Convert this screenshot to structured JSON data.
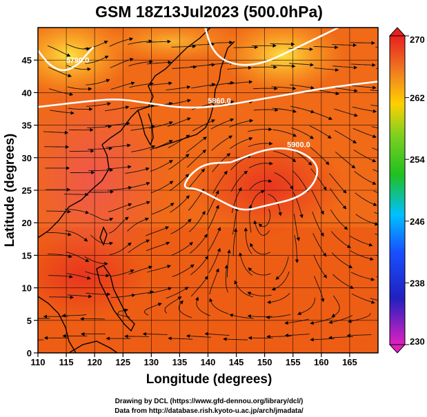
{
  "title": "GSM 18Z13Jul2023 (500.0hPa)",
  "credits": [
    "Drawing by DCL (https://www.gfd-dennou.org/library/dcl/)",
    "Data from http://database.rish.kyoto-u.ac.jp/arch/jmadata/"
  ],
  "chart_data": {
    "type": "heatmap",
    "title": "GSM 18Z13Jul2023 (500.0hPa)",
    "xlabel": "Longitude (degrees)",
    "ylabel": "Latitude  (degrees)",
    "xlim": [
      110,
      170
    ],
    "ylim": [
      0,
      50
    ],
    "x_ticks": [
      110,
      115,
      120,
      125,
      130,
      135,
      140,
      145,
      150,
      155,
      160,
      165
    ],
    "y_ticks": [
      0,
      5,
      10,
      15,
      20,
      25,
      30,
      35,
      40,
      45
    ],
    "grid": true,
    "colorbar": {
      "min": 230,
      "max": 270,
      "ticks": [
        230,
        238,
        246,
        254,
        262,
        270
      ],
      "colors": [
        "#e020c0",
        "#2020c0",
        "#00c0ff",
        "#20c020",
        "#ffd000",
        "#e82020"
      ]
    },
    "contours": [
      {
        "label": "5790.0",
        "points": [
          [
            110,
            46.5
          ],
          [
            112,
            44.2
          ],
          [
            114.5,
            43.2
          ],
          [
            117,
            44.2
          ],
          [
            118.5,
            45.8
          ],
          [
            119.8,
            47
          ]
        ]
      },
      {
        "label": "5860.0",
        "points": [
          [
            110,
            37.8
          ],
          [
            118,
            38.6
          ],
          [
            124,
            39.1
          ],
          [
            130,
            38.3
          ],
          [
            136,
            37.6
          ],
          [
            142,
            37.9
          ],
          [
            148,
            38.8
          ],
          [
            154,
            39.7
          ],
          [
            160,
            40.6
          ],
          [
            166,
            41.3
          ],
          [
            170,
            41.7
          ]
        ]
      },
      {
        "label": "5900.0",
        "points": [
          [
            144,
            29.3
          ],
          [
            151,
            31.6
          ],
          [
            156,
            31.2
          ],
          [
            159.5,
            29
          ],
          [
            159,
            26.2
          ],
          [
            156,
            23.8
          ],
          [
            150,
            22.6
          ],
          [
            146,
            21.7
          ],
          [
            141.5,
            23.7
          ],
          [
            138,
            25.3
          ],
          [
            135.5,
            25.3
          ],
          [
            136.8,
            27.4
          ],
          [
            139.5,
            29.1
          ],
          [
            144,
            29.3
          ]
        ]
      },
      {
        "label": "",
        "points": [
          [
            139.5,
            50
          ],
          [
            140.5,
            47
          ],
          [
            142.5,
            45
          ],
          [
            146,
            44.1
          ],
          [
            150,
            44.6
          ],
          [
            154,
            46.2
          ],
          [
            159,
            48.3
          ],
          [
            163,
            50
          ]
        ]
      }
    ],
    "palette_note_colors": [
      "#f07818",
      "#ffd838"
    ]
  }
}
